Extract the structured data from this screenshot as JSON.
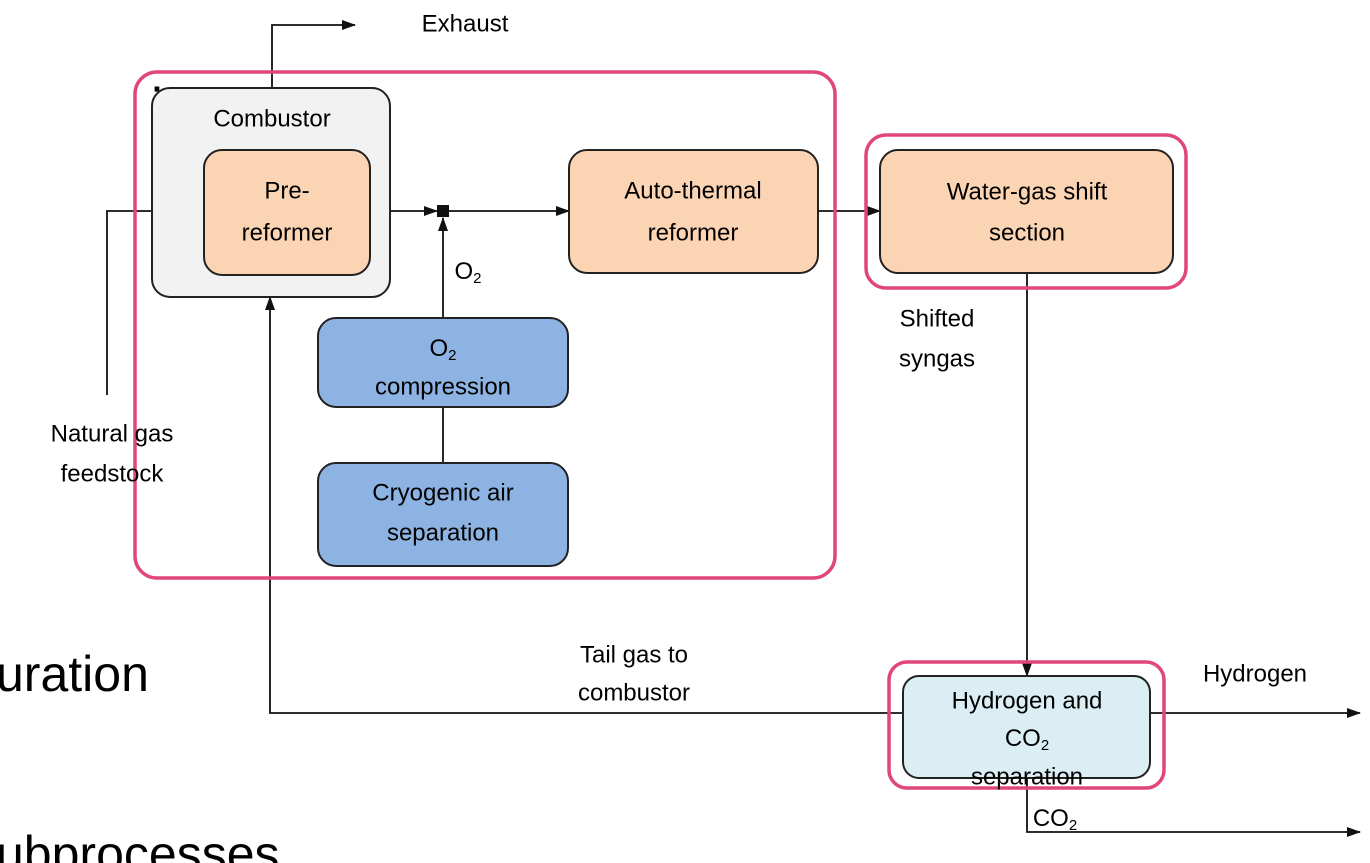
{
  "slide_text": {
    "colon": ":",
    "line1": "uration",
    "line2": "ubprocesses"
  },
  "nodes": {
    "combustor": {
      "label": "Combustor"
    },
    "pre_reformer": {
      "lines": [
        "Pre-",
        "reformer"
      ]
    },
    "auto_thermal_reformer": {
      "lines": [
        "Auto-thermal",
        "reformer"
      ]
    },
    "water_gas_shift": {
      "lines": [
        "Water-gas shift",
        "section"
      ]
    },
    "o2_compression": {
      "line1": {
        "base": "O",
        "sub": "2"
      },
      "line2": "compression"
    },
    "cryogenic_air_separation": {
      "lines": [
        "Cryogenic air",
        "separation"
      ]
    },
    "h2_co2_separation": {
      "line1": "Hydrogen and",
      "line2": {
        "base": "CO",
        "sub": "2"
      },
      "line3": "separation"
    }
  },
  "flows": {
    "exhaust": "Exhaust",
    "natural_gas": [
      "Natural gas",
      "feedstock"
    ],
    "o2": {
      "base": "O",
      "sub": "2"
    },
    "shifted_syngas": [
      "Shifted",
      "syngas"
    ],
    "tail_gas": [
      "Tail gas to",
      "combustor"
    ],
    "hydrogen": "Hydrogen",
    "co2": {
      "base": "CO",
      "sub": "2"
    }
  }
}
